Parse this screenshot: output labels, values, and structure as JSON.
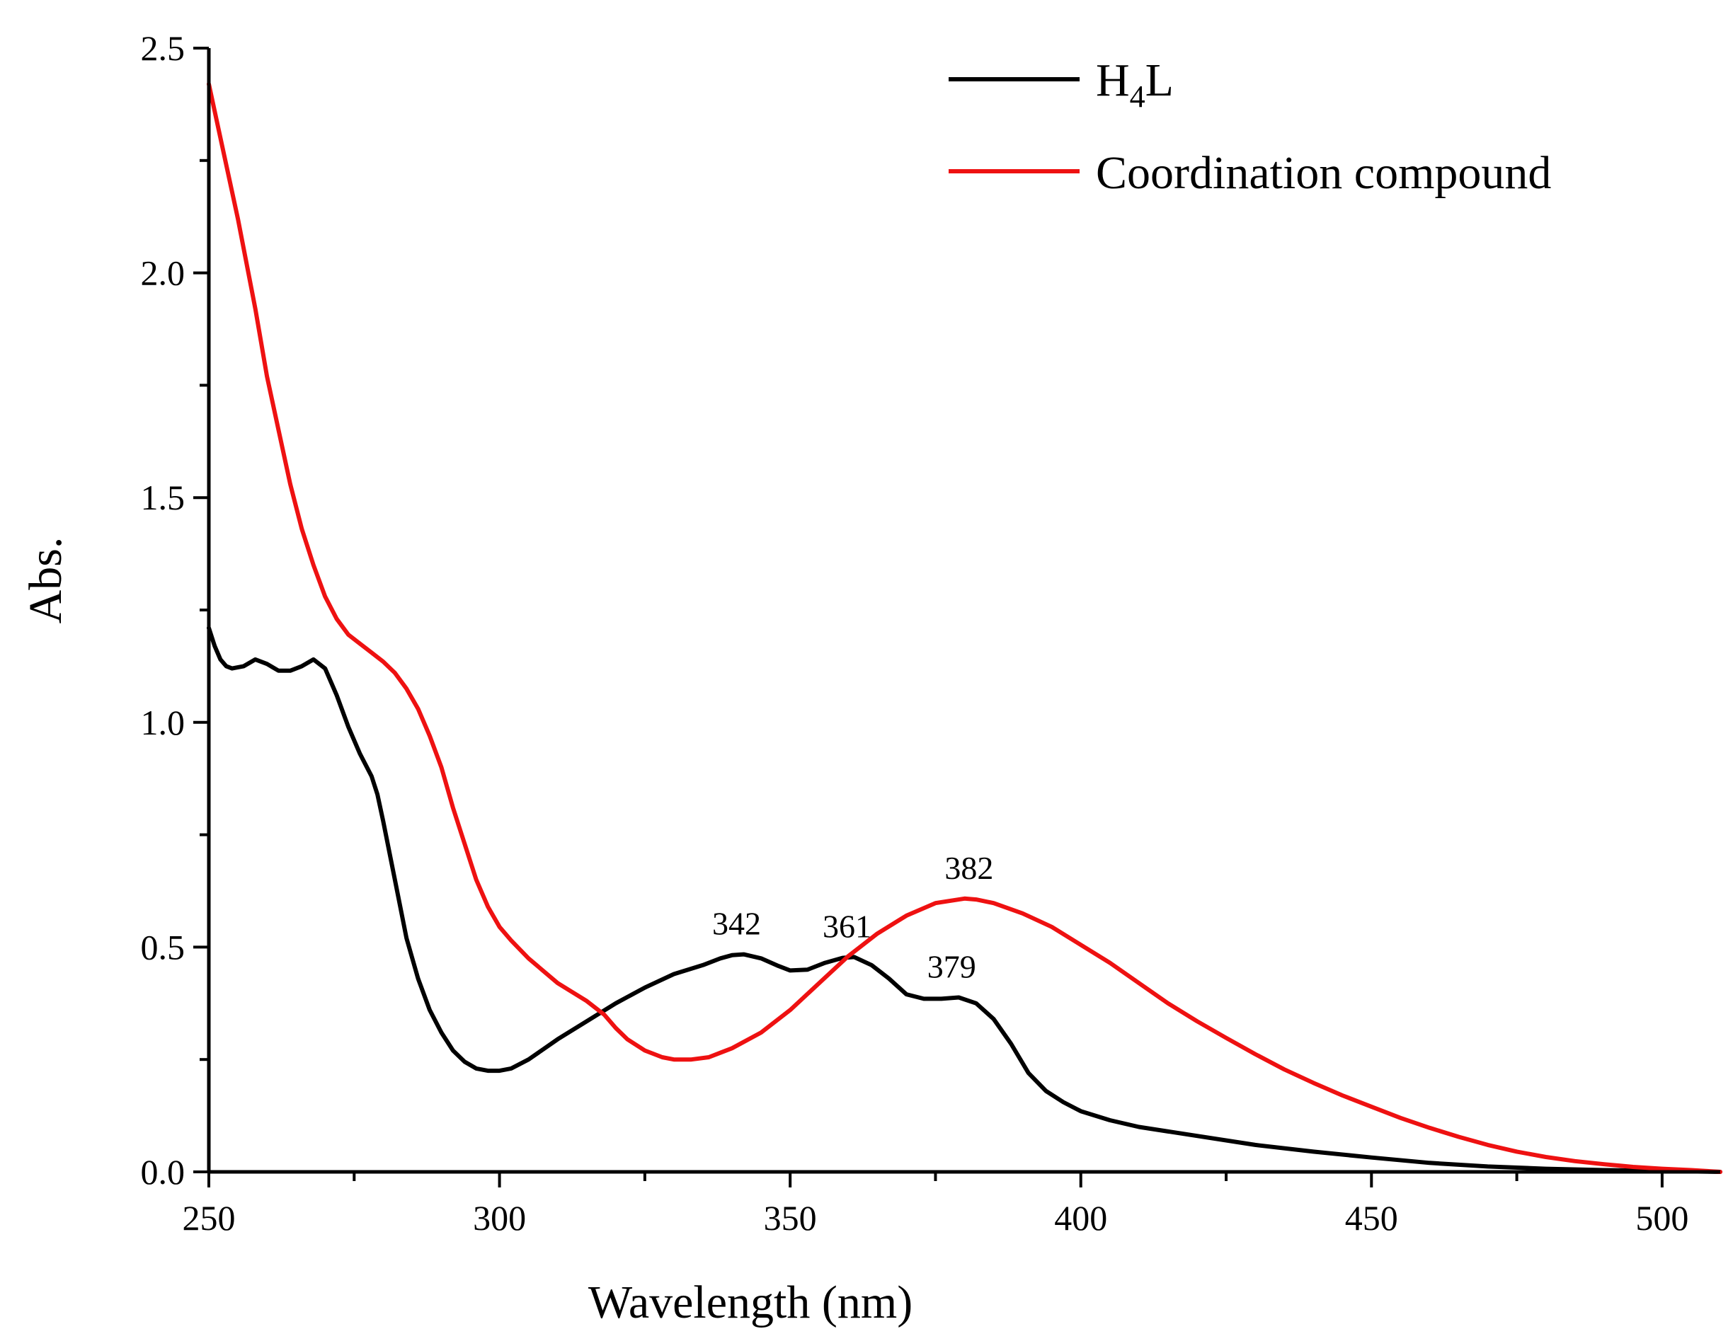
{
  "chart_data": {
    "type": "line",
    "title": "",
    "xlabel": "Wavelength (nm)",
    "ylabel": "Abs.",
    "xlim": [
      250,
      510
    ],
    "ylim": [
      0,
      2.5
    ],
    "xticks": [
      250,
      300,
      350,
      400,
      450,
      500
    ],
    "xtick_labels": [
      "250",
      "300",
      "350",
      "400",
      "450",
      "500"
    ],
    "yticks": [
      0.0,
      0.5,
      1.0,
      1.5,
      2.0,
      2.5
    ],
    "ytick_labels": [
      "0.0",
      "0.5",
      "1.0",
      "1.5",
      "2.0",
      "2.5"
    ],
    "grid": false,
    "legend_position": "top-right",
    "series": [
      {
        "name": "H4L",
        "legend_main": "H",
        "legend_sub": "4",
        "legend_tail": "L",
        "color": "#000000",
        "points": [
          [
            250,
            1.21
          ],
          [
            251,
            1.17
          ],
          [
            252,
            1.14
          ],
          [
            253,
            1.125
          ],
          [
            254,
            1.12
          ],
          [
            256,
            1.125
          ],
          [
            258,
            1.14
          ],
          [
            260,
            1.13
          ],
          [
            262,
            1.115
          ],
          [
            264,
            1.115
          ],
          [
            266,
            1.125
          ],
          [
            268,
            1.14
          ],
          [
            270,
            1.12
          ],
          [
            272,
            1.06
          ],
          [
            274,
            0.99
          ],
          [
            276,
            0.93
          ],
          [
            278,
            0.88
          ],
          [
            279,
            0.84
          ],
          [
            280,
            0.78
          ],
          [
            282,
            0.65
          ],
          [
            284,
            0.52
          ],
          [
            286,
            0.43
          ],
          [
            288,
            0.36
          ],
          [
            290,
            0.31
          ],
          [
            292,
            0.27
          ],
          [
            294,
            0.245
          ],
          [
            296,
            0.23
          ],
          [
            298,
            0.225
          ],
          [
            300,
            0.225
          ],
          [
            302,
            0.23
          ],
          [
            305,
            0.25
          ],
          [
            310,
            0.295
          ],
          [
            315,
            0.335
          ],
          [
            320,
            0.375
          ],
          [
            325,
            0.41
          ],
          [
            330,
            0.44
          ],
          [
            335,
            0.46
          ],
          [
            338,
            0.475
          ],
          [
            340,
            0.482
          ],
          [
            342,
            0.484
          ],
          [
            345,
            0.475
          ],
          [
            348,
            0.458
          ],
          [
            350,
            0.448
          ],
          [
            353,
            0.45
          ],
          [
            356,
            0.465
          ],
          [
            359,
            0.476
          ],
          [
            361,
            0.478
          ],
          [
            364,
            0.46
          ],
          [
            367,
            0.43
          ],
          [
            370,
            0.395
          ],
          [
            373,
            0.385
          ],
          [
            376,
            0.385
          ],
          [
            379,
            0.388
          ],
          [
            382,
            0.375
          ],
          [
            385,
            0.34
          ],
          [
            388,
            0.285
          ],
          [
            391,
            0.22
          ],
          [
            394,
            0.18
          ],
          [
            397,
            0.155
          ],
          [
            400,
            0.135
          ],
          [
            405,
            0.115
          ],
          [
            410,
            0.1
          ],
          [
            420,
            0.08
          ],
          [
            430,
            0.06
          ],
          [
            440,
            0.045
          ],
          [
            450,
            0.032
          ],
          [
            460,
            0.02
          ],
          [
            470,
            0.012
          ],
          [
            480,
            0.007
          ],
          [
            490,
            0.004
          ],
          [
            500,
            0.002
          ],
          [
            510,
            0.0
          ]
        ]
      },
      {
        "name": "Coordination compound",
        "legend_main": "Coordination compound",
        "legend_sub": "",
        "legend_tail": "",
        "color": "#ee1111",
        "points": [
          [
            250,
            2.42
          ],
          [
            252,
            2.3
          ],
          [
            255,
            2.12
          ],
          [
            258,
            1.92
          ],
          [
            260,
            1.77
          ],
          [
            262,
            1.65
          ],
          [
            264,
            1.53
          ],
          [
            266,
            1.43
          ],
          [
            268,
            1.35
          ],
          [
            270,
            1.28
          ],
          [
            272,
            1.23
          ],
          [
            274,
            1.195
          ],
          [
            276,
            1.175
          ],
          [
            278,
            1.155
          ],
          [
            280,
            1.135
          ],
          [
            282,
            1.11
          ],
          [
            284,
            1.075
          ],
          [
            286,
            1.03
          ],
          [
            288,
            0.97
          ],
          [
            290,
            0.9
          ],
          [
            292,
            0.81
          ],
          [
            294,
            0.73
          ],
          [
            296,
            0.65
          ],
          [
            298,
            0.59
          ],
          [
            300,
            0.545
          ],
          [
            302,
            0.515
          ],
          [
            305,
            0.475
          ],
          [
            310,
            0.42
          ],
          [
            315,
            0.38
          ],
          [
            318,
            0.35
          ],
          [
            320,
            0.32
          ],
          [
            322,
            0.295
          ],
          [
            325,
            0.27
          ],
          [
            328,
            0.255
          ],
          [
            330,
            0.25
          ],
          [
            333,
            0.25
          ],
          [
            336,
            0.255
          ],
          [
            340,
            0.275
          ],
          [
            345,
            0.31
          ],
          [
            350,
            0.36
          ],
          [
            355,
            0.42
          ],
          [
            360,
            0.48
          ],
          [
            365,
            0.53
          ],
          [
            370,
            0.57
          ],
          [
            375,
            0.598
          ],
          [
            380,
            0.608
          ],
          [
            382,
            0.606
          ],
          [
            385,
            0.598
          ],
          [
            390,
            0.575
          ],
          [
            395,
            0.545
          ],
          [
            400,
            0.505
          ],
          [
            405,
            0.465
          ],
          [
            410,
            0.42
          ],
          [
            415,
            0.375
          ],
          [
            420,
            0.335
          ],
          [
            425,
            0.298
          ],
          [
            430,
            0.262
          ],
          [
            435,
            0.228
          ],
          [
            440,
            0.198
          ],
          [
            445,
            0.17
          ],
          [
            450,
            0.145
          ],
          [
            455,
            0.12
          ],
          [
            460,
            0.098
          ],
          [
            465,
            0.078
          ],
          [
            470,
            0.06
          ],
          [
            475,
            0.045
          ],
          [
            480,
            0.033
          ],
          [
            485,
            0.024
          ],
          [
            490,
            0.017
          ],
          [
            495,
            0.011
          ],
          [
            500,
            0.007
          ],
          [
            505,
            0.004
          ],
          [
            510,
            0.0
          ]
        ]
      }
    ],
    "annotations": [
      {
        "text": "342",
        "x": 342,
        "y": 0.484
      },
      {
        "text": "361",
        "x": 361,
        "y": 0.478
      },
      {
        "text": "379",
        "x": 379,
        "y": 0.388
      },
      {
        "text": "382",
        "x": 382,
        "y": 0.608
      }
    ]
  }
}
